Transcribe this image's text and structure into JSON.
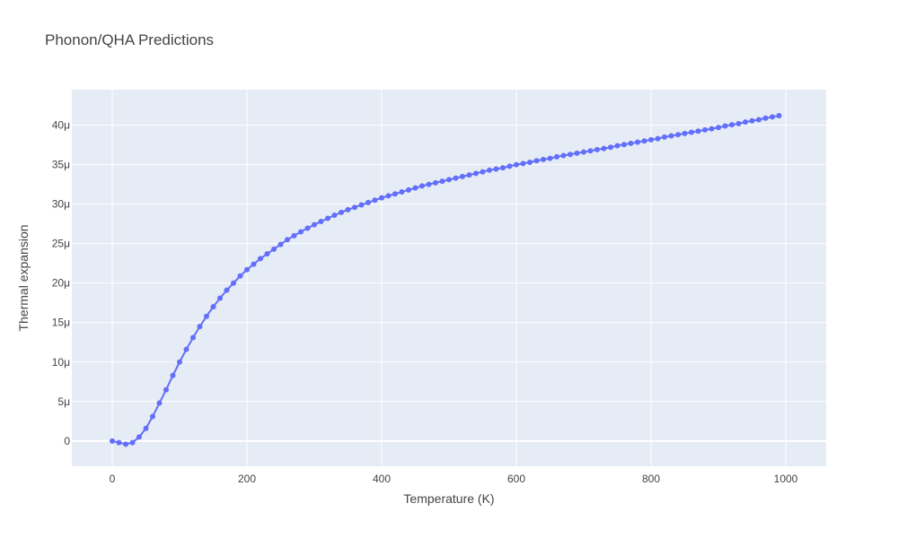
{
  "chart_data": {
    "type": "line",
    "title": "Phonon/QHA Predictions",
    "xlabel": "Temperature (K)",
    "ylabel": "Thermal expansion",
    "xlim": [
      -60,
      1060
    ],
    "ylim": [
      -3.2e-06,
      4.45e-05
    ],
    "x_ticks": [
      0,
      200,
      400,
      600,
      800,
      1000
    ],
    "x_tick_labels": [
      "0",
      "200",
      "400",
      "600",
      "800",
      "1000"
    ],
    "y_ticks": [
      0,
      5e-06,
      1e-05,
      1.5e-05,
      2e-05,
      2.5e-05,
      3e-05,
      3.5e-05,
      4e-05
    ],
    "y_tick_labels": [
      "0",
      "5μ",
      "10μ",
      "15μ",
      "20μ",
      "25μ",
      "30μ",
      "35μ",
      "40μ"
    ],
    "grid": true,
    "colors": {
      "series": "#636efa",
      "plot_bg": "#e5ecf6",
      "grid": "#ffffff",
      "text": "#444444"
    },
    "series": [
      {
        "x": [
          0,
          10,
          20,
          30,
          40,
          50,
          60,
          70,
          80,
          90,
          100,
          110,
          120,
          130,
          140,
          150,
          160,
          170,
          180,
          190,
          200,
          210,
          220,
          230,
          240,
          250,
          260,
          270,
          280,
          290,
          300,
          310,
          320,
          330,
          340,
          350,
          360,
          370,
          380,
          390,
          400,
          410,
          420,
          430,
          440,
          450,
          460,
          470,
          480,
          490,
          500,
          510,
          520,
          530,
          540,
          550,
          560,
          570,
          580,
          590,
          600,
          610,
          620,
          630,
          640,
          650,
          660,
          670,
          680,
          690,
          700,
          710,
          720,
          730,
          740,
          750,
          760,
          770,
          780,
          790,
          800,
          810,
          820,
          830,
          840,
          850,
          860,
          870,
          880,
          890,
          900,
          910,
          920,
          930,
          940,
          950,
          960,
          970,
          980,
          990
        ],
        "y": [
          0,
          -2e-07,
          -4e-07,
          -2e-07,
          5e-07,
          1.6e-06,
          3.1e-06,
          4.8e-06,
          6.5e-06,
          8.3e-06,
          1e-05,
          1.16e-05,
          1.31e-05,
          1.45e-05,
          1.58e-05,
          1.7e-05,
          1.81e-05,
          1.91e-05,
          2e-05,
          2.09e-05,
          2.17e-05,
          2.24e-05,
          2.31e-05,
          2.37e-05,
          2.43e-05,
          2.49e-05,
          2.55e-05,
          2.6e-05,
          2.65e-05,
          2.695e-05,
          2.74e-05,
          2.78e-05,
          2.82e-05,
          2.86e-05,
          2.895e-05,
          2.93e-05,
          2.96e-05,
          2.99e-05,
          3.02e-05,
          3.05e-05,
          3.08e-05,
          3.105e-05,
          3.13e-05,
          3.155e-05,
          3.18e-05,
          3.205e-05,
          3.23e-05,
          3.25e-05,
          3.27e-05,
          3.29e-05,
          3.31e-05,
          3.33e-05,
          3.35e-05,
          3.37e-05,
          3.39e-05,
          3.41e-05,
          3.43e-05,
          3.445e-05,
          3.46e-05,
          3.48e-05,
          3.5e-05,
          3.515e-05,
          3.53e-05,
          3.55e-05,
          3.565e-05,
          3.58e-05,
          3.6e-05,
          3.615e-05,
          3.63e-05,
          3.645e-05,
          3.66e-05,
          3.675e-05,
          3.69e-05,
          3.705e-05,
          3.72e-05,
          3.74e-05,
          3.755e-05,
          3.77e-05,
          3.785e-05,
          3.8e-05,
          3.815e-05,
          3.83e-05,
          3.85e-05,
          3.865e-05,
          3.88e-05,
          3.895e-05,
          3.91e-05,
          3.925e-05,
          3.94e-05,
          3.955e-05,
          3.97e-05,
          3.99e-05,
          4.005e-05,
          4.02e-05,
          4.04e-05,
          4.055e-05,
          4.07e-05,
          4.09e-05,
          4.105e-05,
          4.12e-05
        ]
      }
    ]
  }
}
